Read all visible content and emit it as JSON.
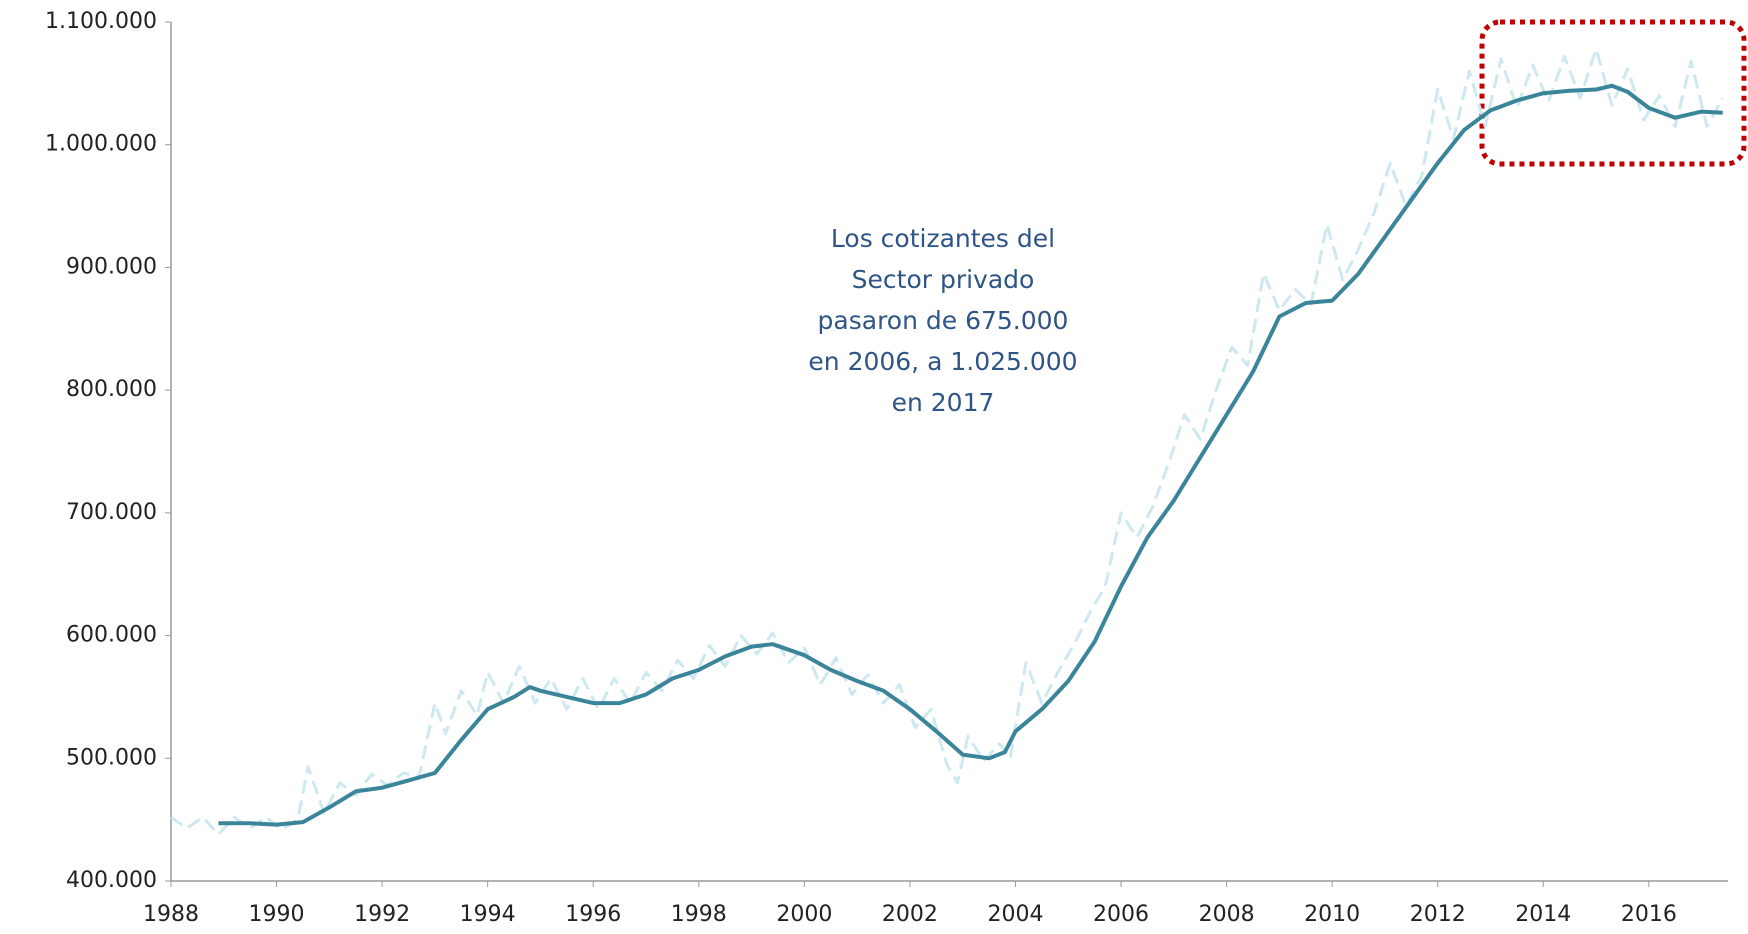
{
  "chart_data": {
    "type": "line",
    "annotation": [
      "Los cotizantes del",
      "Sector privado",
      "pasaron de 675.000",
      "en 2006, a 1.025.000",
      "en 2017"
    ],
    "xlim": [
      1988,
      2017.5
    ],
    "xticks": [
      1988,
      1990,
      1992,
      1994,
      1996,
      1998,
      2000,
      2002,
      2004,
      2006,
      2008,
      2010,
      2012,
      2014,
      2016
    ],
    "ylim": [
      400000,
      1100000
    ],
    "yticks": [
      {
        "value": 400000,
        "label": "400.000"
      },
      {
        "value": 500000,
        "label": "500.000"
      },
      {
        "value": 600000,
        "label": "600.000"
      },
      {
        "value": 700000,
        "label": "700.000"
      },
      {
        "value": 800000,
        "label": "800.000"
      },
      {
        "value": 900000,
        "label": "900.000"
      },
      {
        "value": 1000000,
        "label": "1.000.000"
      },
      {
        "value": 1100000,
        "label": "1.100.000"
      }
    ],
    "series": [
      {
        "color": "#cde8ef",
        "style": "dashed",
        "x": [
          1988,
          1988.3,
          1988.6,
          1988.9,
          1989.2,
          1989.5,
          1989.8,
          1990.1,
          1990.4,
          1990.6,
          1990.9,
          1991.2,
          1991.5,
          1991.8,
          1992.1,
          1992.4,
          1992.7,
          1993,
          1993.2,
          1993.5,
          1993.8,
          1994,
          1994.3,
          1994.6,
          1994.9,
          1995.2,
          1995.5,
          1995.8,
          1996.1,
          1996.4,
          1996.7,
          1997,
          1997.3,
          1997.6,
          1997.9,
          1998.2,
          1998.5,
          1998.8,
          1999.1,
          1999.4,
          1999.7,
          2000,
          2000.3,
          2000.6,
          2000.9,
          2001.2,
          2001.5,
          2001.8,
          2002.1,
          2002.4,
          2002.7,
          2002.9,
          2003.1,
          2003.4,
          2003.7,
          2003.9,
          2004.2,
          2004.5,
          2004.8,
          2005.1,
          2005.4,
          2005.7,
          2006,
          2006.3,
          2006.6,
          2006.9,
          2007.2,
          2007.5,
          2007.8,
          2008.1,
          2008.4,
          2008.7,
          2009,
          2009.3,
          2009.6,
          2009.9,
          2010.2,
          2010.5,
          2010.8,
          2011.1,
          2011.4,
          2011.7,
          2012,
          2012.3,
          2012.6,
          2012.9,
          2013.2,
          2013.5,
          2013.8,
          2014.1,
          2014.4,
          2014.7,
          2015,
          2015.3,
          2015.6,
          2015.9,
          2016.2,
          2016.5,
          2016.8,
          2017.1,
          2017.4
        ],
        "values": [
          452000,
          443000,
          452000,
          438000,
          452000,
          443000,
          452000,
          442000,
          450000,
          493000,
          455000,
          480000,
          470000,
          487000,
          478000,
          488000,
          485000,
          545000,
          520000,
          555000,
          535000,
          570000,
          545000,
          575000,
          545000,
          565000,
          540000,
          565000,
          540000,
          565000,
          545000,
          570000,
          555000,
          580000,
          565000,
          592000,
          575000,
          600000,
          585000,
          602000,
          578000,
          590000,
          560000,
          582000,
          552000,
          568000,
          545000,
          560000,
          525000,
          540000,
          495000,
          480000,
          518000,
          498000,
          512000,
          500000,
          578000,
          545000,
          570000,
          592000,
          618000,
          640000,
          700000,
          680000,
          705000,
          740000,
          780000,
          760000,
          800000,
          835000,
          820000,
          895000,
          865000,
          882000,
          870000,
          935000,
          890000,
          915000,
          945000,
          985000,
          950000,
          975000,
          1045000,
          1005000,
          1060000,
          1015000,
          1070000,
          1030000,
          1065000,
          1035000,
          1072000,
          1038000,
          1078000,
          1032000,
          1062000,
          1020000,
          1040000,
          1015000,
          1068000,
          1015000,
          1038000
        ]
      },
      {
        "color": "#3a8599",
        "style": "solid",
        "x": [
          1988.9,
          1989.5,
          1990,
          1990.5,
          1991,
          1991.5,
          1992,
          1992.5,
          1993,
          1993.5,
          1994,
          1994.5,
          1994.8,
          1995,
          1995.5,
          1996,
          1996.5,
          1997,
          1997.5,
          1998,
          1998.5,
          1999,
          1999.4,
          2000,
          2000.5,
          2001,
          2001.5,
          2002,
          2002.5,
          2003,
          2003.5,
          2003.8,
          2004,
          2004.5,
          2005,
          2005.5,
          2006,
          2006.5,
          2007,
          2007.5,
          2008,
          2008.5,
          2009,
          2009.5,
          2010,
          2010.5,
          2011,
          2011.5,
          2012,
          2012.5,
          2013,
          2013.5,
          2014,
          2014.5,
          2015,
          2015.3,
          2015.6,
          2016,
          2016.5,
          2017,
          2017.4
        ],
        "values": [
          447000,
          447000,
          446000,
          448000,
          460000,
          473000,
          476000,
          482000,
          488000,
          515000,
          540000,
          550000,
          558000,
          555000,
          550000,
          545000,
          545000,
          552000,
          565000,
          572000,
          583000,
          591000,
          593000,
          584000,
          572000,
          563000,
          555000,
          540000,
          522000,
          503000,
          500000,
          505000,
          522000,
          540000,
          563000,
          595000,
          640000,
          680000,
          710000,
          745000,
          780000,
          815000,
          860000,
          871000,
          873000,
          895000,
          925000,
          955000,
          985000,
          1012000,
          1028000,
          1036000,
          1042000,
          1044000,
          1045000,
          1048000,
          1043000,
          1030000,
          1022000,
          1027000,
          1026000
        ]
      }
    ]
  }
}
